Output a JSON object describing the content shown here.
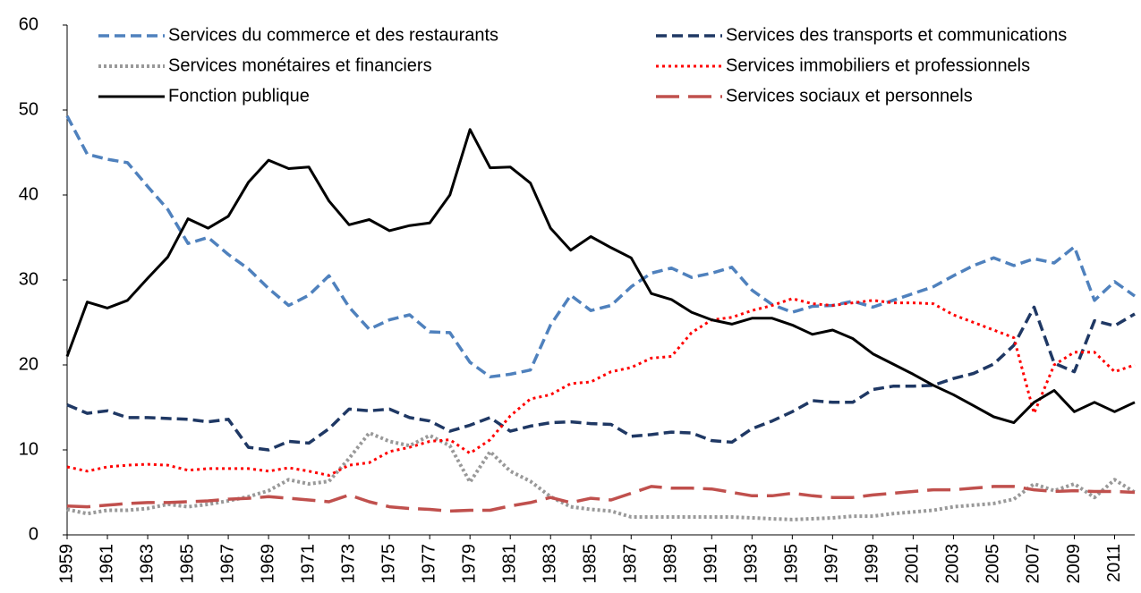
{
  "chart_data": {
    "type": "line",
    "x": [
      1959,
      1960,
      1961,
      1962,
      1963,
      1964,
      1965,
      1966,
      1967,
      1968,
      1969,
      1970,
      1971,
      1972,
      1973,
      1974,
      1975,
      1976,
      1977,
      1978,
      1979,
      1980,
      1981,
      1982,
      1983,
      1984,
      1985,
      1986,
      1987,
      1988,
      1989,
      1990,
      1991,
      1992,
      1993,
      1994,
      1995,
      1996,
      1997,
      1998,
      1999,
      2000,
      2001,
      2002,
      2003,
      2004,
      2005,
      2006,
      2007,
      2008,
      2009,
      2010,
      2011,
      2012
    ],
    "xlim": [
      1959,
      2012
    ],
    "xticks": [
      1959,
      1961,
      1963,
      1965,
      1967,
      1969,
      1971,
      1973,
      1975,
      1977,
      1979,
      1981,
      1983,
      1985,
      1987,
      1989,
      1991,
      1993,
      1995,
      1997,
      1999,
      2001,
      2003,
      2005,
      2007,
      2009,
      2011
    ],
    "ylim": [
      0,
      60
    ],
    "yticks": [
      0,
      10,
      20,
      30,
      40,
      50,
      60
    ],
    "series": [
      {
        "name": "Services du commerce et des restaurants",
        "color": "#4f81bd",
        "dash": "12,6",
        "width": 3.5,
        "values": [
          49.3,
          44.8,
          44.2,
          43.8,
          41,
          38.3,
          34.3,
          35,
          33,
          31.3,
          29,
          27,
          28.2,
          30.5,
          26.8,
          24.2,
          25.3,
          25.9,
          23.9,
          23.8,
          20.3,
          18.6,
          18.9,
          19.4,
          24.7,
          28.2,
          26.4,
          27,
          29.2,
          30.8,
          31.4,
          30.3,
          30.8,
          31.5,
          28.8,
          27.1,
          26.2,
          26.9,
          27,
          27.5,
          26.8,
          27.6,
          28.4,
          29.2,
          30.5,
          31.7,
          32.6,
          31.7,
          32.5,
          32,
          33.9,
          27.6,
          29.8,
          28.1
        ]
      },
      {
        "name": "Services des transports et communications",
        "color": "#1f3864",
        "dash": "12,6",
        "width": 3.5,
        "values": [
          15.3,
          14.3,
          14.6,
          13.8,
          13.8,
          13.7,
          13.6,
          13.3,
          13.6,
          10.3,
          10,
          11,
          10.8,
          12.5,
          14.8,
          14.6,
          14.8,
          13.8,
          13.4,
          12.2,
          12.9,
          13.8,
          12.2,
          12.8,
          13.2,
          13.3,
          13.1,
          13,
          11.6,
          11.8,
          12.1,
          12,
          11.1,
          10.9,
          12.5,
          13.4,
          14.5,
          15.8,
          15.6,
          15.6,
          17.1,
          17.5,
          17.5,
          17.6,
          18.4,
          19,
          20.1,
          22.3,
          26.8,
          20.2,
          19.2,
          25.2,
          24.6,
          26
        ]
      },
      {
        "name": "Services monétaires et financiers",
        "color": "#999999",
        "dash": "3,3",
        "width": 4,
        "values": [
          3,
          2.5,
          2.9,
          2.9,
          3.1,
          3.6,
          3.3,
          3.6,
          4,
          4.5,
          5.2,
          6.5,
          6,
          6.3,
          9,
          12,
          11,
          10.5,
          11.7,
          10.5,
          6.2,
          9.8,
          7.5,
          6.3,
          4.5,
          3.3,
          3,
          2.8,
          2.1,
          2.1,
          2.1,
          2.1,
          2.1,
          2.1,
          2,
          1.9,
          1.8,
          1.9,
          2,
          2.2,
          2.2,
          2.5,
          2.7,
          2.9,
          3.3,
          3.5,
          3.7,
          4.2,
          6,
          5.2,
          6,
          4.4,
          6.5,
          5
        ]
      },
      {
        "name": "Services immobiliers et professionnels",
        "color": "#ff0000",
        "dash": "3,4",
        "width": 3,
        "values": [
          8,
          7.5,
          8,
          8.2,
          8.3,
          8.2,
          7.6,
          7.8,
          7.8,
          7.8,
          7.5,
          7.9,
          7.5,
          7,
          8.2,
          8.5,
          9.8,
          10.3,
          11,
          11.2,
          9.6,
          11.2,
          14,
          16,
          16.5,
          17.8,
          18,
          19.2,
          19.7,
          20.8,
          21,
          23.8,
          25.3,
          25.6,
          26.4,
          27,
          27.8,
          27.2,
          27,
          27.3,
          27.6,
          27.3,
          27.3,
          27.2,
          25.9,
          25,
          24.1,
          23.2,
          14.3,
          20,
          21.5,
          21.5,
          19.2,
          20
        ]
      },
      {
        "name": "Fonction publique",
        "color": "#000000",
        "dash": "none",
        "width": 3,
        "values": [
          21,
          27.4,
          26.7,
          27.6,
          30.2,
          32.7,
          37.2,
          36.1,
          37.5,
          41.5,
          44.1,
          43.1,
          43.3,
          39.3,
          36.5,
          37.1,
          35.8,
          36.4,
          36.7,
          40,
          47.7,
          43.2,
          43.3,
          41.4,
          36.1,
          33.5,
          35.1,
          33.8,
          32.6,
          28.4,
          27.7,
          26.2,
          25.3,
          24.8,
          25.5,
          25.5,
          24.7,
          23.6,
          24.1,
          23.1,
          21.3,
          20.1,
          18.9,
          17.6,
          16.5,
          15.2,
          13.9,
          13.2,
          15.6,
          17,
          14.5,
          15.6,
          14.5,
          15.6
        ]
      },
      {
        "name": "Services sociaux et personnels",
        "color": "#c0504d",
        "dash": "26,10",
        "width": 3.5,
        "values": [
          3.4,
          3.3,
          3.5,
          3.7,
          3.8,
          3.8,
          3.9,
          4,
          4.2,
          4.3,
          4.5,
          4.3,
          4.1,
          3.9,
          4.7,
          3.9,
          3.3,
          3.1,
          3,
          2.8,
          2.9,
          2.9,
          3.4,
          3.8,
          4.4,
          3.8,
          4.3,
          4.1,
          4.9,
          5.7,
          5.5,
          5.5,
          5.4,
          5,
          4.6,
          4.6,
          4.9,
          4.6,
          4.4,
          4.4,
          4.7,
          4.9,
          5.1,
          5.3,
          5.3,
          5.5,
          5.7,
          5.7,
          5.3,
          5.1,
          5.2,
          5.1,
          5.1,
          5
        ]
      }
    ]
  }
}
